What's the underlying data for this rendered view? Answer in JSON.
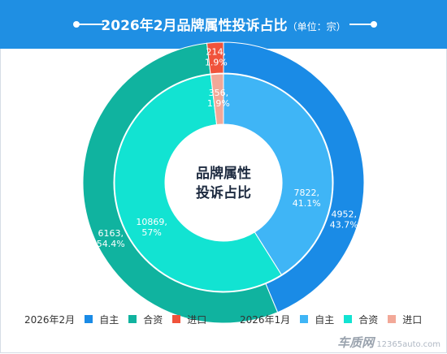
{
  "header": {
    "title": "2026年2月品牌属性投诉占比",
    "unit": "（单位：宗）"
  },
  "chart_data": {
    "type": "pie",
    "title": "2026年2月品牌属性投诉占比",
    "center_label_line1": "品牌属性",
    "center_label_line2": "投诉占比",
    "categories": [
      "自主",
      "合资",
      "进口"
    ],
    "series": [
      {
        "name": "2026年2月",
        "ring": "outer",
        "values": [
          4952,
          6163,
          214
        ],
        "percent_labels": [
          "43.7%",
          "54.4%",
          "1.9%"
        ],
        "value_labels": [
          "4952,",
          "6163,",
          "214,"
        ],
        "colors": [
          "#1a8be6",
          "#10b39f",
          "#f0533b"
        ]
      },
      {
        "name": "2026年1月",
        "ring": "inner",
        "values": [
          7822,
          10869,
          356
        ],
        "percent_labels": [
          "41.1%",
          "57%",
          "1.9%"
        ],
        "value_labels": [
          "7822,",
          "10869,",
          "356,"
        ],
        "colors": [
          "#3fb5f6",
          "#12e3d2",
          "#f2a898"
        ]
      }
    ],
    "legend_placement": "bottom"
  },
  "watermark": {
    "brand": "车质网",
    "site": "12365auto.com"
  }
}
